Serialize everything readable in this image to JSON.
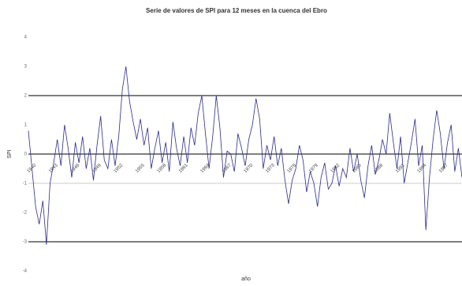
{
  "chart_data": {
    "type": "line",
    "title": "Serie de valores de SPI para 12 meses en la cuenca del Ebro",
    "x_label": "año",
    "y_label": "SPI",
    "x": [
      1940,
      1940.5,
      1941,
      1941.5,
      1942,
      1942.5,
      1943,
      1943.5,
      1944,
      1944.5,
      1945,
      1945.5,
      1946,
      1946.5,
      1947,
      1947.5,
      1948,
      1948.5,
      1949,
      1949.5,
      1950,
      1950.5,
      1951,
      1951.5,
      1952,
      1952.5,
      1953,
      1953.5,
      1954,
      1954.5,
      1955,
      1955.5,
      1956,
      1956.5,
      1957,
      1957.5,
      1958,
      1958.5,
      1959,
      1959.5,
      1960,
      1960.5,
      1961,
      1961.5,
      1962,
      1962.5,
      1963,
      1963.5,
      1964,
      1964.5,
      1965,
      1965.5,
      1966,
      1966.5,
      1967,
      1967.5,
      1968,
      1968.5,
      1969,
      1969.5,
      1970,
      1970.5,
      1971,
      1971.5,
      1972,
      1972.5,
      1973,
      1973.5,
      1974,
      1974.5,
      1975,
      1975.5,
      1976,
      1976.5,
      1977,
      1977.5,
      1978,
      1978.5,
      1979,
      1979.5,
      1980,
      1980.5,
      1981,
      1981.5,
      1982,
      1982.5,
      1983,
      1983.5,
      1984,
      1984.5,
      1985,
      1985.5,
      1986,
      1986.5,
      1987,
      1987.5,
      1988,
      1988.5,
      1989,
      1989.5,
      1990,
      1990.5,
      1991,
      1991.5,
      1992,
      1992.5,
      1993,
      1993.5,
      1994,
      1994.5,
      1995,
      1995.5,
      1996,
      1996.5,
      1997,
      1997.5,
      1998,
      1998.5,
      1999,
      1999.5,
      2000
    ],
    "series": [
      {
        "name": "SPI",
        "color": "#2a2a8a",
        "values": [
          0.8,
          -0.5,
          -1.8,
          -2.4,
          -1.6,
          -3.1,
          -1.0,
          -0.3,
          0.5,
          -0.4,
          1.0,
          0.2,
          -0.8,
          0.4,
          -0.3,
          0.6,
          -0.5,
          0.2,
          -0.9,
          0.3,
          1.3,
          -0.2,
          -0.5,
          0.5,
          -0.4,
          0.6,
          2.2,
          3.0,
          1.8,
          1.1,
          0.5,
          1.2,
          0.3,
          0.9,
          -0.5,
          0.2,
          0.8,
          -0.3,
          0.4,
          -0.6,
          1.1,
          0.2,
          -0.4,
          0.6,
          -0.3,
          0.9,
          0.3,
          1.4,
          2.0,
          0.7,
          -0.5,
          0.6,
          2.0,
          0.9,
          -0.8,
          0.1,
          0.0,
          -0.6,
          0.7,
          0.2,
          -0.4,
          0.5,
          1.0,
          1.9,
          1.2,
          -0.5,
          0.3,
          -0.2,
          0.6,
          -0.4,
          0.2,
          -0.9,
          -1.7,
          -0.9,
          -0.5,
          0.3,
          -0.2,
          -1.3,
          -0.6,
          -1.0,
          -1.8,
          -0.8,
          -0.3,
          -1.2,
          -1.0,
          -0.4,
          -1.1,
          -0.5,
          -0.8,
          0.2,
          -0.6,
          0.0,
          -0.9,
          -1.5,
          -0.4,
          0.3,
          -0.7,
          -0.2,
          0.5,
          0.0,
          1.4,
          0.4,
          -0.5,
          0.6,
          -1.0,
          -0.3,
          0.4,
          1.2,
          -0.4,
          0.3,
          -2.6,
          -0.8,
          0.5,
          1.5,
          0.7,
          -0.5,
          0.4,
          1.0,
          -0.6,
          0.2,
          -0.8
        ]
      }
    ],
    "xlim": [
      1940,
      2000
    ],
    "xticks": [
      1940,
      1943,
      1946,
      1949,
      1952,
      1955,
      1958,
      1961,
      1964,
      1967,
      1970,
      1973,
      1976,
      1979,
      1982,
      1985,
      1988,
      1991,
      1994,
      1997
    ],
    "ylim": [
      -4,
      4
    ],
    "yticks": [
      -4,
      -3,
      -2,
      -1,
      0,
      1,
      2,
      3,
      4
    ],
    "reference_lines": [
      {
        "value": 2,
        "color": "#333333"
      },
      {
        "value": 0,
        "color": "#333333"
      },
      {
        "value": -1,
        "color": "#bbbbbb"
      },
      {
        "value": -3,
        "color": "#333333"
      }
    ]
  }
}
